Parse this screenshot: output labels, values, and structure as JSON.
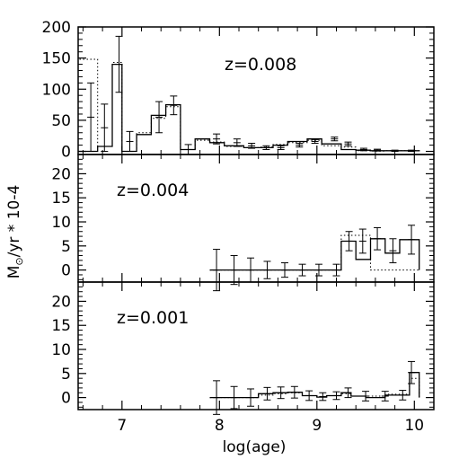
{
  "chart_data": {
    "type": "histogram",
    "xlabel": "log(age)",
    "ylabel_parts": {
      "m": "M",
      "sun": "⊙",
      "rest": "/yr * 10-4"
    },
    "xlim": [
      6.55,
      10.2
    ],
    "x_ticks": [
      "7",
      "8",
      "9",
      "10"
    ],
    "panels": [
      {
        "annotation": "z=0.008",
        "ylim": [
          -5,
          200
        ],
        "y_ticks": [
          "0",
          "50",
          "100",
          "150",
          "200"
        ],
        "edges": [
          6.55,
          6.75,
          6.9,
          7.0,
          7.15,
          7.3,
          7.45,
          7.6,
          7.75,
          7.9,
          8.05,
          8.25,
          8.4,
          8.55,
          8.7,
          8.9,
          9.05,
          9.25,
          9.4,
          9.55,
          9.7,
          9.9,
          10.05
        ],
        "solid": [
          0,
          8,
          140,
          0,
          27,
          58,
          75,
          3,
          20,
          14,
          9,
          6,
          6,
          10,
          16,
          20,
          12,
          3,
          2,
          1,
          1,
          1
        ],
        "dotted": [
          148,
          8,
          143,
          0,
          30,
          53,
          72,
          3,
          18,
          15,
          8,
          6,
          7,
          11,
          14,
          18,
          9,
          7,
          1,
          0.5,
          1,
          1
        ],
        "errors": [
          {
            "x": 6.68,
            "y": 55,
            "err": 55
          },
          {
            "x": 6.82,
            "y": 38,
            "err": 38
          },
          {
            "x": 6.97,
            "y": 140,
            "err": 45
          },
          {
            "x": 7.08,
            "y": 16,
            "err": 16
          },
          {
            "x": 7.38,
            "y": 55,
            "err": 25
          },
          {
            "x": 7.53,
            "y": 74,
            "err": 15
          },
          {
            "x": 7.68,
            "y": 3,
            "err": 8
          },
          {
            "x": 7.97,
            "y": 20,
            "err": 8
          },
          {
            "x": 8.18,
            "y": 14,
            "err": 6
          },
          {
            "x": 8.33,
            "y": 9,
            "err": 4
          },
          {
            "x": 8.48,
            "y": 6,
            "err": 3
          },
          {
            "x": 8.63,
            "y": 6,
            "err": 3
          },
          {
            "x": 8.82,
            "y": 10,
            "err": 3
          },
          {
            "x": 8.98,
            "y": 16,
            "err": 3
          },
          {
            "x": 9.18,
            "y": 20,
            "err": 3
          },
          {
            "x": 9.32,
            "y": 12,
            "err": 3
          },
          {
            "x": 9.48,
            "y": 3,
            "err": 2
          },
          {
            "x": 9.62,
            "y": 2,
            "err": 1.5
          },
          {
            "x": 9.8,
            "y": 1,
            "err": 1
          },
          {
            "x": 9.97,
            "y": 1,
            "err": 1
          }
        ]
      },
      {
        "annotation": "z=0.004",
        "ylim": [
          -2.5,
          24
        ],
        "y_ticks": [
          "0",
          "5",
          "10",
          "15",
          "20"
        ],
        "edges": [
          7.9,
          9.25,
          9.4,
          9.55,
          9.7,
          9.85,
          10.05
        ],
        "solid": [
          0,
          6,
          2.2,
          6.5,
          3.5,
          6.3
        ],
        "dotted": [
          0,
          7.2,
          7.2,
          0,
          0,
          0
        ],
        "errors": [
          {
            "x": 7.97,
            "y": 0,
            "err": 4.3
          },
          {
            "x": 8.15,
            "y": 0,
            "err": 3
          },
          {
            "x": 8.32,
            "y": 0,
            "err": 2.5
          },
          {
            "x": 8.49,
            "y": 0,
            "err": 1.8
          },
          {
            "x": 8.67,
            "y": 0,
            "err": 1.5
          },
          {
            "x": 8.85,
            "y": 0,
            "err": 1.2
          },
          {
            "x": 9.02,
            "y": 0,
            "err": 1.2
          },
          {
            "x": 9.2,
            "y": 0,
            "err": 1.2
          },
          {
            "x": 9.33,
            "y": 6,
            "err": 2
          },
          {
            "x": 9.47,
            "y": 6,
            "err": 2.5
          },
          {
            "x": 9.62,
            "y": 6.5,
            "err": 2.3
          },
          {
            "x": 9.78,
            "y": 4,
            "err": 2.5
          },
          {
            "x": 9.97,
            "y": 6.3,
            "err": 3
          }
        ]
      },
      {
        "annotation": "z=0.001",
        "ylim": [
          -2.5,
          24
        ],
        "y_ticks": [
          "0",
          "5",
          "10",
          "15",
          "20"
        ],
        "edges": [
          7.9,
          8.4,
          8.55,
          8.7,
          8.85,
          9.0,
          9.1,
          9.25,
          9.35,
          9.5,
          9.7,
          9.95,
          10.05
        ],
        "solid": [
          0,
          0.8,
          1.0,
          1.1,
          0.4,
          0.1,
          0.4,
          1.0,
          0.3,
          0,
          0.5,
          5.2
        ],
        "dotted": [
          0,
          0.5,
          0.8,
          1.0,
          0.4,
          0.2,
          0.4,
          0.8,
          0.3,
          0.3,
          0.7,
          4.0
        ],
        "errors": [
          {
            "x": 7.97,
            "y": 0,
            "err": 3.5
          },
          {
            "x": 8.15,
            "y": 0,
            "err": 2.3
          },
          {
            "x": 8.32,
            "y": 0,
            "err": 1.8
          },
          {
            "x": 8.49,
            "y": 0.8,
            "err": 1.3
          },
          {
            "x": 8.63,
            "y": 1.0,
            "err": 1.2
          },
          {
            "x": 8.77,
            "y": 1.1,
            "err": 1.2
          },
          {
            "x": 8.92,
            "y": 0.4,
            "err": 1.0
          },
          {
            "x": 9.06,
            "y": 0.2,
            "err": 0.8
          },
          {
            "x": 9.2,
            "y": 0.4,
            "err": 0.8
          },
          {
            "x": 9.32,
            "y": 1.0,
            "err": 1.0
          },
          {
            "x": 9.5,
            "y": 0.3,
            "err": 1.0
          },
          {
            "x": 9.7,
            "y": 0.3,
            "err": 1.0
          },
          {
            "x": 9.88,
            "y": 0.5,
            "err": 1.0
          },
          {
            "x": 9.97,
            "y": 5.2,
            "err": 2.3
          }
        ]
      }
    ]
  }
}
